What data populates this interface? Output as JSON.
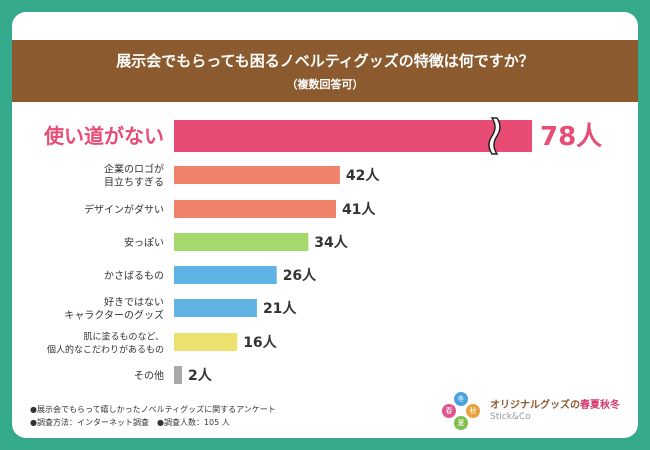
{
  "header": {
    "title": "展示会でもらっても困るノベルティグッズの特徴は何ですか？",
    "subtitle": "（複数回答可）"
  },
  "notes": {
    "survey_topic": "●展示会でもらって嬉しかったノベルティグッズに関するアンケート",
    "survey_method": "●調査方法：インターネット調査　●調査人数：105 人"
  },
  "brand": {
    "name_prefix": "オリジナルグッズの",
    "seasons": "春夏秋冬",
    "logo_text": "Stick&Co",
    "badge_chars": [
      "冬",
      "春",
      "秋",
      "夏"
    ],
    "badge_colors": [
      "#4aa3df",
      "#e0558f",
      "#e9a23b",
      "#7fbf4d"
    ]
  },
  "chart_data": {
    "type": "bar",
    "orientation": "horizontal",
    "categories": [
      "使い道がない",
      "企業のロゴが\n目立ちすぎる",
      "デザインがダサい",
      "安っぽい",
      "かさばるもの",
      "好きではない\nキャラクターのグッズ",
      "肌に塗るものなど、\n個人的なこだわりがあるもの",
      "その他"
    ],
    "values": [
      78,
      42,
      41,
      34,
      26,
      21,
      16,
      2
    ],
    "value_labels": [
      "78人",
      "42人",
      "41人",
      "34人",
      "26人",
      "21人",
      "16人",
      "2人"
    ],
    "colors": [
      "#e84c74",
      "#f0826a",
      "#f0826a",
      "#a5d96b",
      "#5fb3e5",
      "#5fb3e5",
      "#ece06e",
      "#a8a8a8"
    ],
    "axis_break": true,
    "grid": false,
    "legend": "none"
  }
}
